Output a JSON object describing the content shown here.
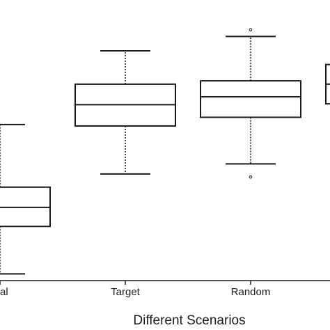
{
  "chart_data": {
    "type": "box",
    "title": "",
    "xlabel": "Different Scenarios",
    "ylabel": "",
    "ylim": [
      0,
      100
    ],
    "grid": false,
    "legend": "none",
    "categories": [
      "Original",
      "Target",
      "Random",
      ""
    ],
    "visible_tick_labels": [
      "inal",
      "Target",
      "Random",
      ""
    ],
    "boxes": [
      {
        "category": "Original",
        "whisker_low": 2.4,
        "q1": 19.3,
        "median": 26.1,
        "q3": 33.3,
        "whisker_high": 55.6,
        "outliers": []
      },
      {
        "category": "Target",
        "whisker_low": 38.0,
        "q1": 55.1,
        "median": 62.7,
        "q3": 70.0,
        "whisker_high": 81.9,
        "outliers": []
      },
      {
        "category": "Random",
        "whisker_low": 41.6,
        "q1": 58.2,
        "median": 65.5,
        "q3": 71.2,
        "whisker_high": 87.0,
        "outliers": [
          36.9,
          89.4
        ]
      },
      {
        "category": "",
        "whisker_low": null,
        "q1": 63.0,
        "median": 70.0,
        "q3": 77.0,
        "whisker_high": null,
        "outliers": []
      }
    ],
    "colors": {
      "stroke": "#1a1a1a",
      "fill": "#ffffff"
    }
  }
}
